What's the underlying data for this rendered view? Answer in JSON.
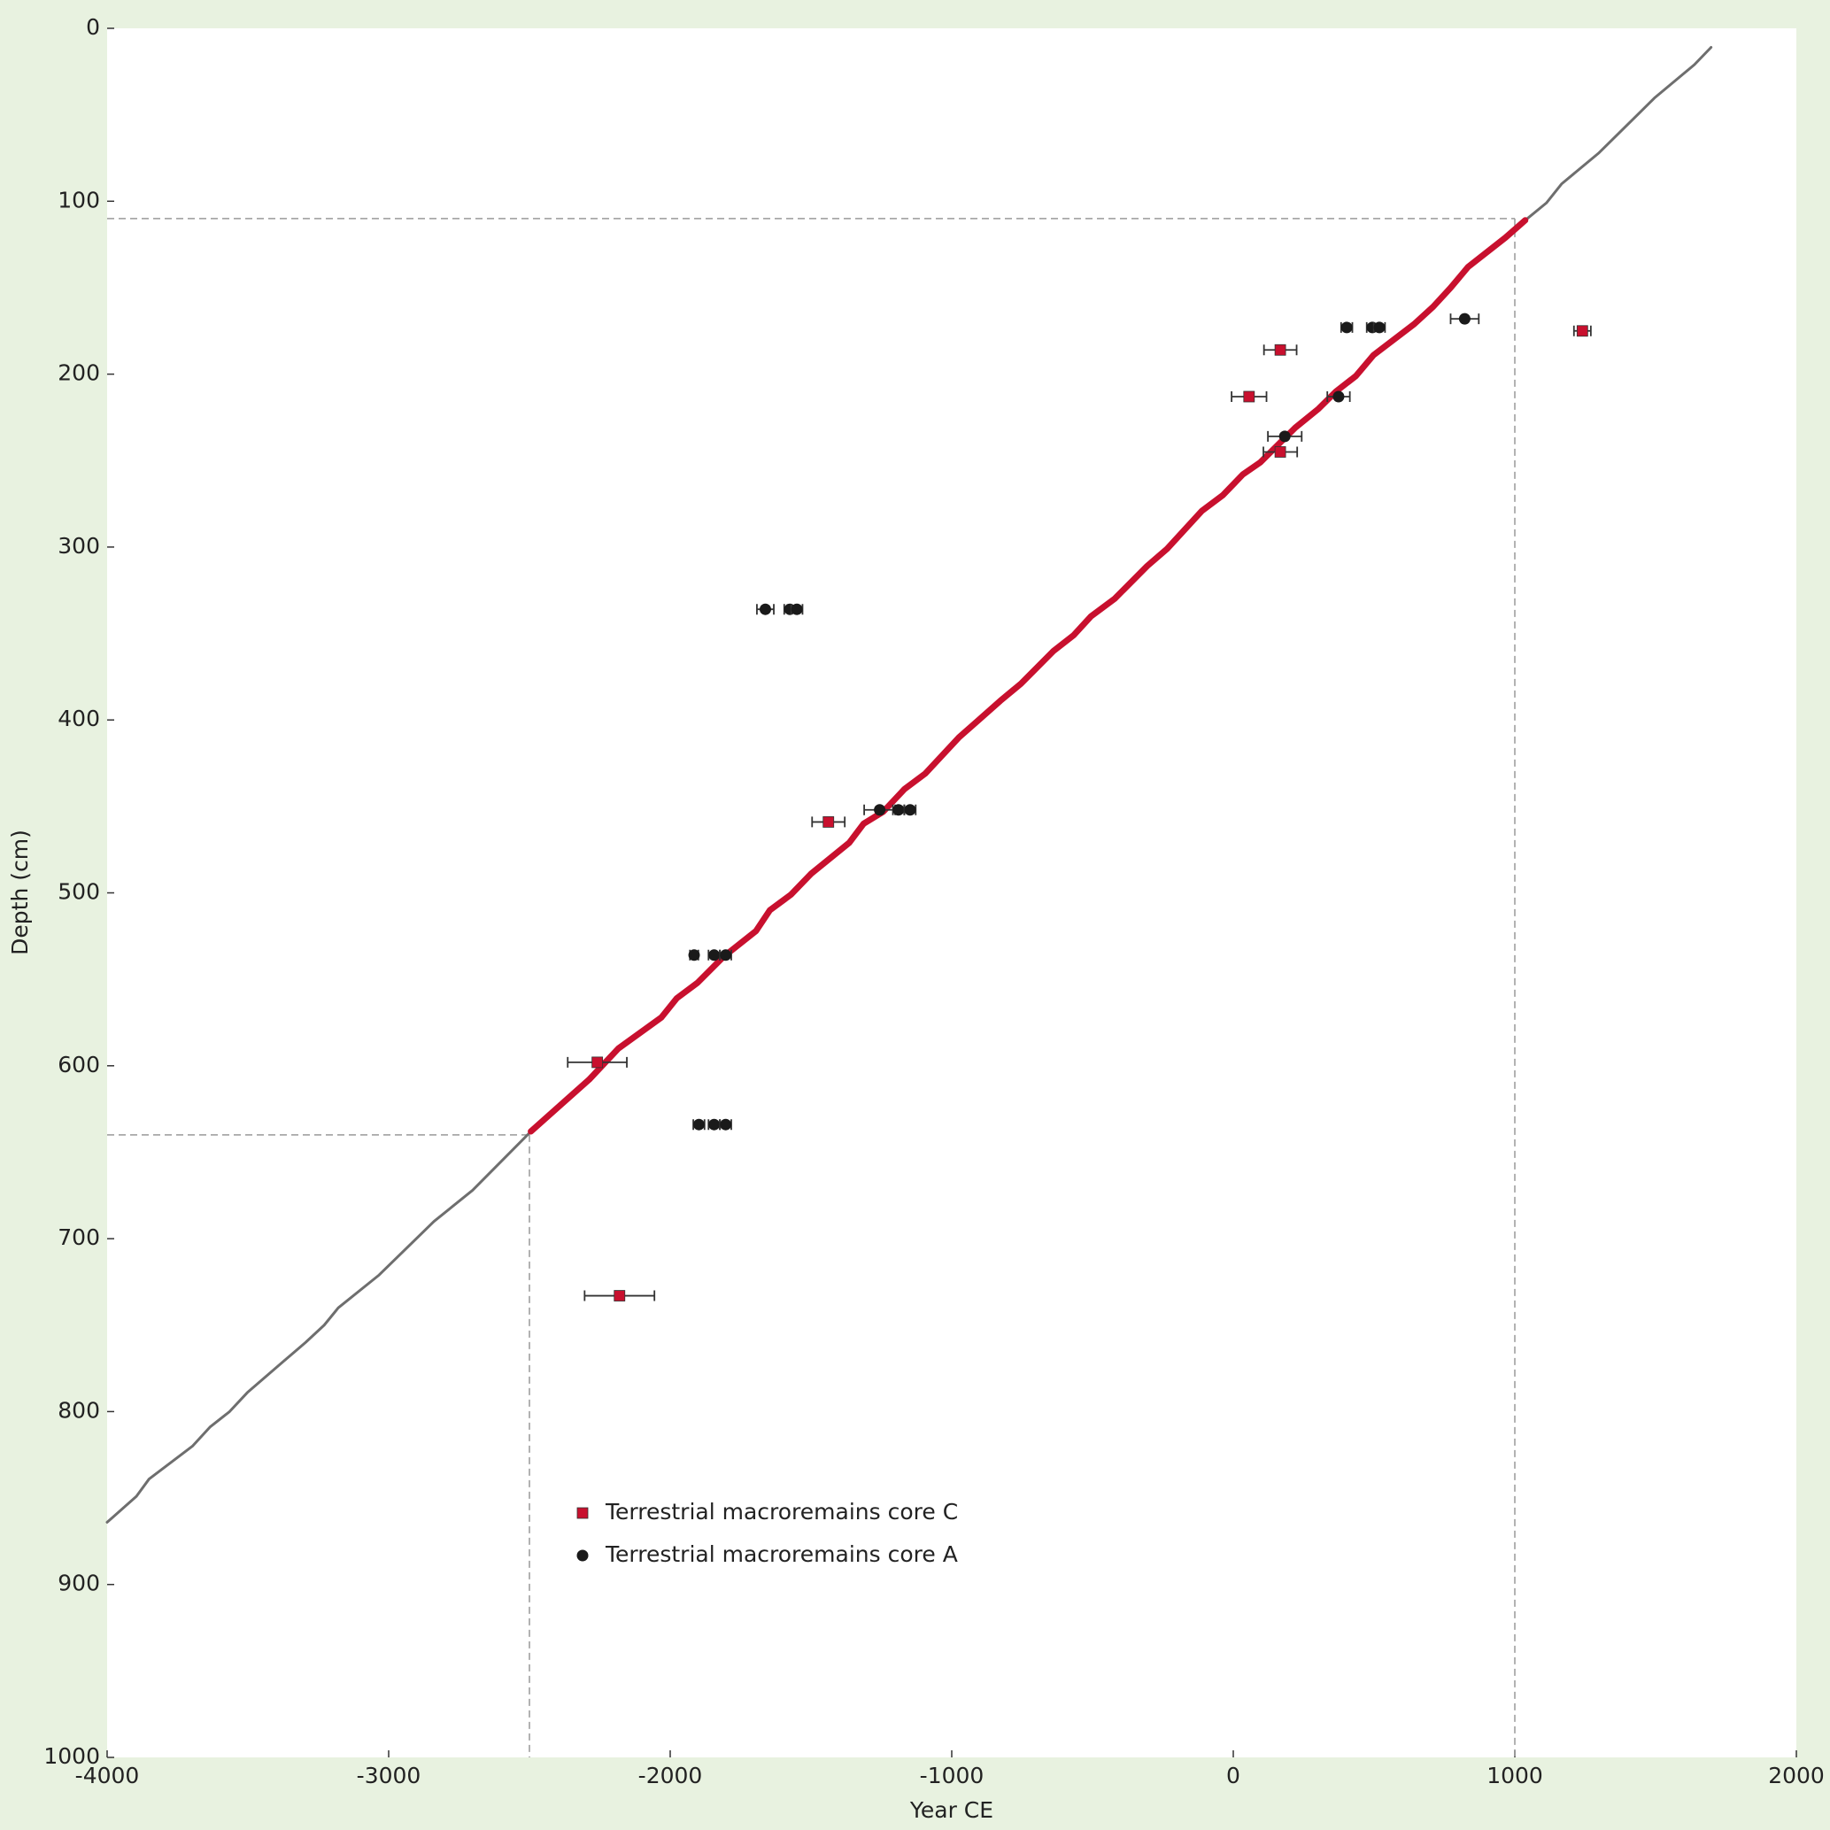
{
  "chart_data": {
    "type": "scatter",
    "x_label": "Year CE",
    "y_label": "Depth (cm)",
    "xlim": [
      -4000,
      2000
    ],
    "ylim": [
      0,
      1000
    ],
    "y_inverted": true,
    "xticks": [
      -4000,
      -3000,
      -2000,
      -1000,
      0,
      1000,
      2000
    ],
    "yticks": [
      0,
      100,
      200,
      300,
      400,
      500,
      600,
      700,
      800,
      900,
      1000
    ],
    "legend": "lower left",
    "reference_points": [
      {
        "x": -2500,
        "y": 640
      },
      {
        "x": 1000,
        "y": 110
      }
    ],
    "lines": [
      {
        "color": "#6e6e6e",
        "x": [
          -4000,
          -3896,
          -3851,
          -3697,
          -3635,
          -3565,
          -3502,
          -3374,
          -3295,
          -3229,
          -3179,
          -3034,
          -2839,
          -2702,
          -2495,
          -2371,
          -2288,
          -2184,
          -2031,
          -1977,
          -1903,
          -1811,
          -1695,
          -1646,
          -1571,
          -1500,
          -1364,
          -1313,
          -1243,
          -1168,
          -1094,
          -974,
          -911,
          -828,
          -754,
          -638,
          -567,
          -505,
          -422,
          -306,
          -235,
          -111,
          -37,
          34,
          96,
          220,
          303,
          365,
          436,
          498,
          643,
          710,
          772,
          834,
          967,
          1037,
          1112,
          1166,
          1299,
          1498,
          1638,
          1697
        ],
        "y": [
          864,
          849,
          839,
          820,
          809,
          800,
          789,
          771,
          760,
          750,
          740,
          721,
          690,
          672,
          638,
          620,
          608,
          590,
          572,
          561,
          552,
          537,
          522,
          510,
          501,
          489,
          471,
          460,
          453,
          440,
          431,
          410,
          401,
          389,
          379,
          360,
          351,
          340,
          330,
          311,
          301,
          279,
          270,
          258,
          251,
          231,
          220,
          210,
          201,
          189,
          171,
          161,
          150,
          138,
          121,
          111,
          101,
          90,
          72,
          40,
          21,
          11
        ]
      },
      {
        "color": "#c8102e",
        "x": [
          -2495,
          -2371,
          -2288,
          -2184,
          -2031,
          -1977,
          -1903,
          -1811,
          -1695,
          -1646,
          -1571,
          -1500,
          -1364,
          -1313,
          -1243,
          -1168,
          -1094,
          -974,
          -911,
          -828,
          -754,
          -638,
          -567,
          -505,
          -422,
          -306,
          -235,
          -111,
          -37,
          34,
          96,
          220,
          303,
          365,
          436,
          498,
          643,
          710,
          772,
          834,
          967,
          1037
        ],
        "y": [
          638,
          620,
          608,
          590,
          572,
          561,
          552,
          537,
          522,
          510,
          501,
          489,
          471,
          460,
          453,
          440,
          431,
          410,
          401,
          389,
          379,
          360,
          351,
          340,
          330,
          311,
          301,
          279,
          270,
          258,
          251,
          231,
          220,
          210,
          201,
          189,
          171,
          161,
          150,
          138,
          121,
          111
        ]
      }
    ],
    "series": [
      {
        "name": "Terrestrial macroremains core C",
        "color": "#c8102e",
        "marker": "square",
        "x": [
          167,
          56,
          167,
          1240,
          -1438,
          -2259,
          -2180
        ],
        "values": [
          186,
          213,
          245,
          175,
          459,
          598,
          733
        ],
        "errors": [
          58,
          62,
          60,
          30,
          58,
          105,
          124
        ]
      },
      {
        "name": "Terrestrial macroremains core A",
        "color": "#1a1a1a",
        "marker": "circle",
        "x": [
          403,
          494,
          519,
          822,
          374,
          183,
          -1662,
          -1575,
          -1550,
          -1256,
          -1189,
          -1148,
          -1915,
          -1844,
          -1803,
          -1898,
          -1844,
          -1803
        ],
        "values": [
          173,
          173,
          173,
          168,
          213,
          236,
          336,
          336,
          336,
          452,
          452,
          452,
          536,
          536,
          536,
          634,
          634,
          634
        ],
        "errors": [
          20,
          20,
          20,
          50,
          40,
          60,
          30,
          20,
          20,
          55,
          20,
          20,
          15,
          20,
          20,
          20,
          20,
          20
        ]
      }
    ]
  }
}
